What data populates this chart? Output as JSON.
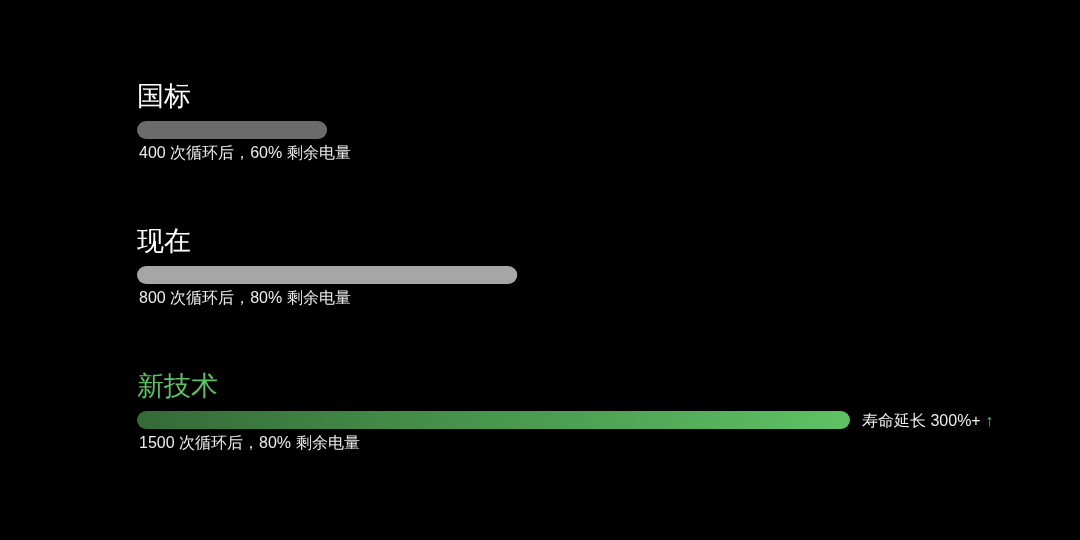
{
  "chart_data": {
    "type": "bar",
    "orientation": "horizontal",
    "categories": [
      "国标",
      "现在",
      "新技术"
    ],
    "values": [
      400,
      800,
      1500
    ],
    "value_labels": [
      "400 次循环后，60% 剩余电量",
      "800 次循环后，80% 剩余电量",
      "1500 次循环后，80% 剩余电量"
    ],
    "colors": [
      "#6b6b6b",
      "#a6a6a6",
      "#5ec264"
    ],
    "annotations": [
      "寿命延长 300%+ ↑"
    ]
  }
}
